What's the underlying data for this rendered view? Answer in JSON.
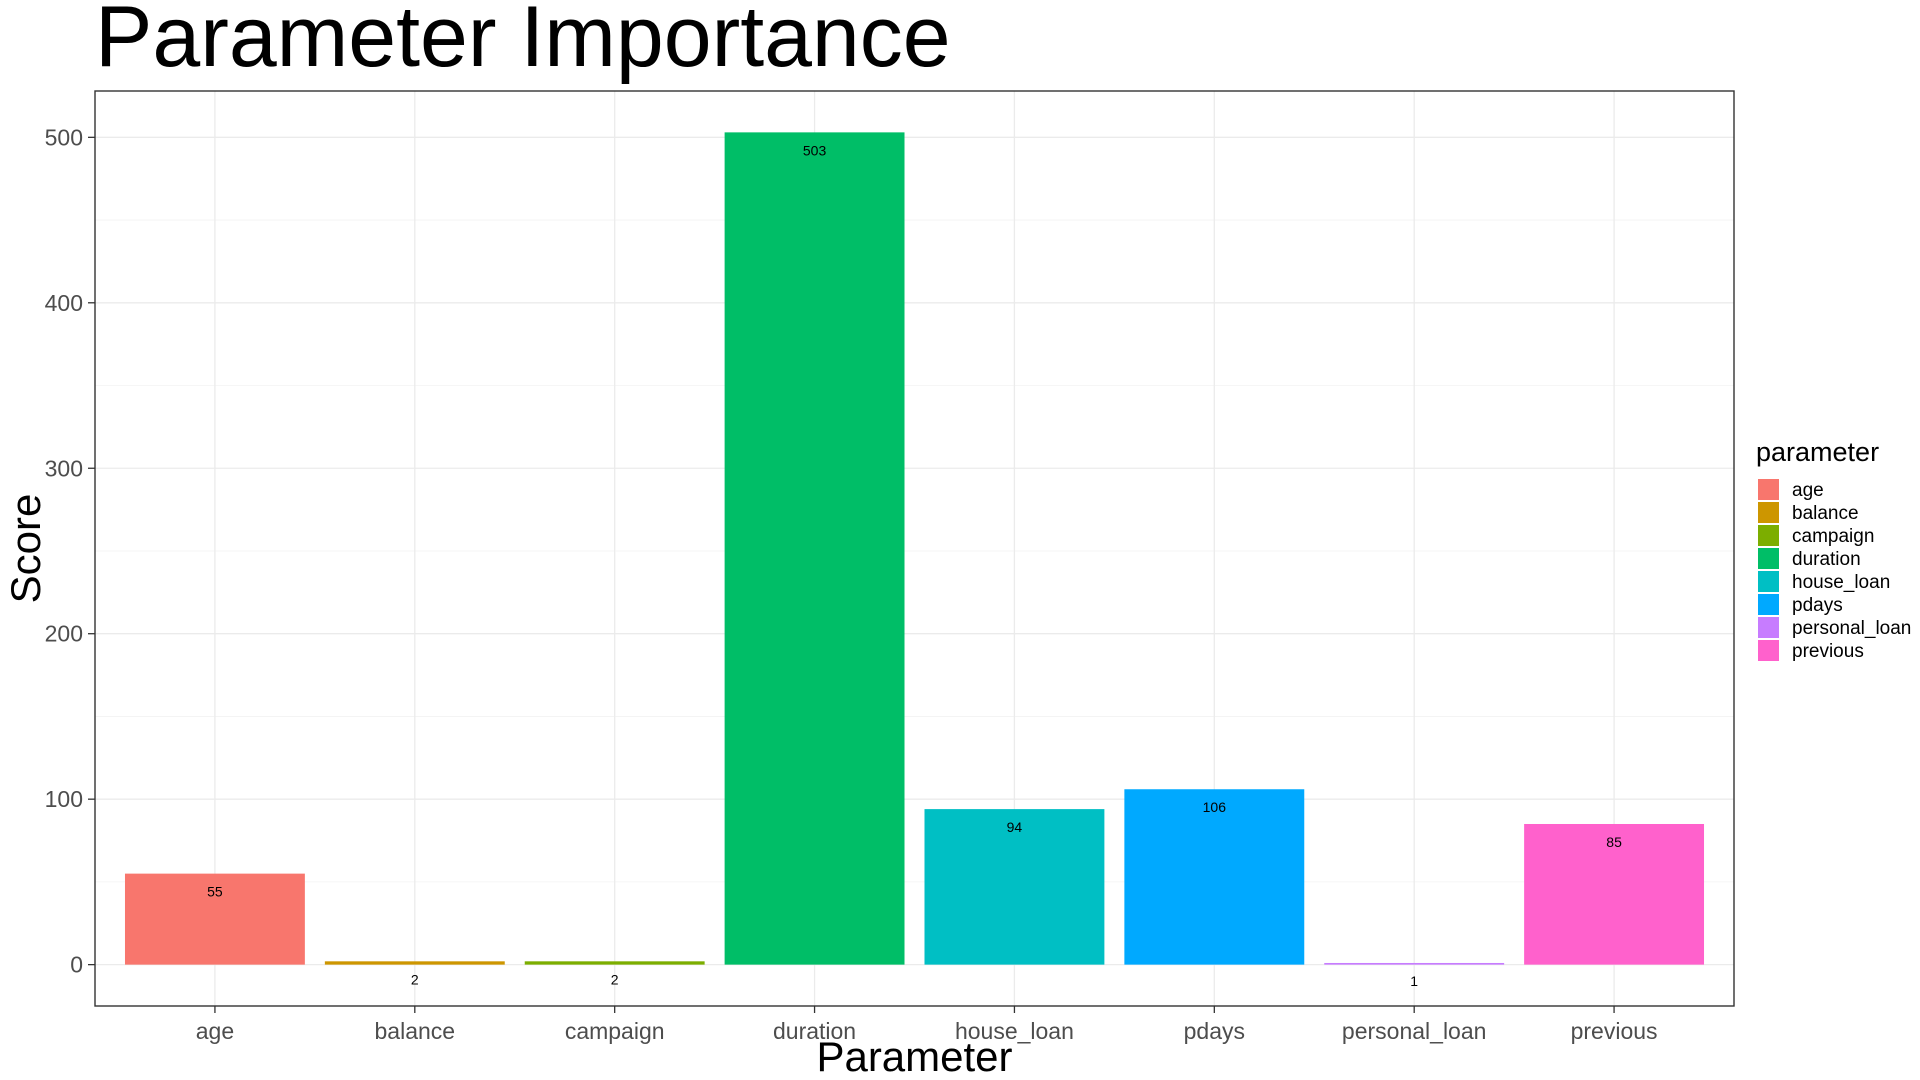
{
  "chart_data": {
    "type": "bar",
    "title": "Parameter Importance",
    "xlabel": "Parameter",
    "ylabel": "Score",
    "categories": [
      "age",
      "balance",
      "campaign",
      "duration",
      "house_loan",
      "pdays",
      "personal_loan",
      "previous"
    ],
    "values": [
      55,
      2,
      2,
      503,
      94,
      106,
      1,
      85
    ],
    "data_labels": [
      "55",
      "2",
      "2",
      "503",
      "94",
      "106",
      "1",
      "85"
    ],
    "colors": [
      "#F8766D",
      "#CD9600",
      "#7CAE00",
      "#00BE67",
      "#00BFC4",
      "#00A9FF",
      "#C77CFF",
      "#FF61CC"
    ],
    "ylim": [
      -25,
      528
    ],
    "yticks": [
      0,
      100,
      200,
      300,
      400,
      500
    ],
    "ytick_labels": [
      "0",
      "100",
      "200",
      "300",
      "400",
      "500"
    ],
    "grid": true,
    "legend": {
      "title": "parameter",
      "position": "right",
      "entries": [
        "age",
        "balance",
        "campaign",
        "duration",
        "house_loan",
        "pdays",
        "personal_loan",
        "previous"
      ]
    }
  }
}
